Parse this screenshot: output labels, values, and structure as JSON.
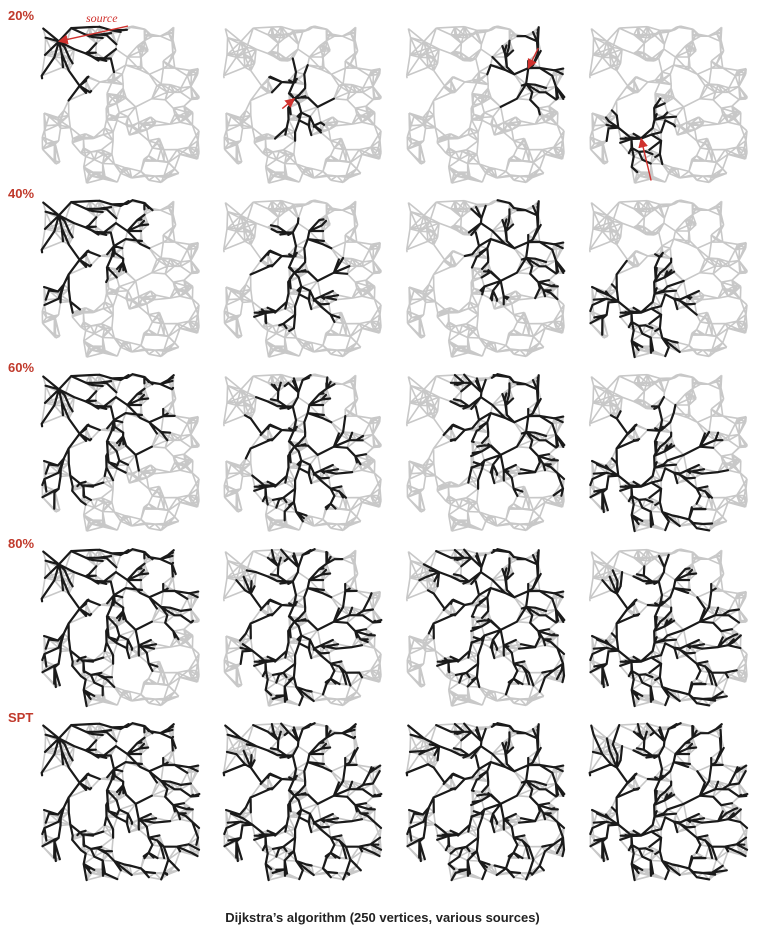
{
  "row_labels": [
    "20%",
    "40%",
    "60%",
    "80%",
    "SPT"
  ],
  "source_label": "source",
  "caption": "Dijkstra’s algorithm (250 vertices, various sources)",
  "colors": {
    "label": "#c0392b",
    "arrow": "#d0312d",
    "graph_edge": "#c8c8c8",
    "tree_edge": "#1a1a1a",
    "caption": "#222222"
  },
  "panel_grid": {
    "rows": 5,
    "columns": 4,
    "progress_fraction_by_row": [
      0.2,
      0.4,
      0.6,
      0.8,
      1.0
    ],
    "graph_vertices": 250,
    "source_regions_by_column": [
      "upper-left",
      "center",
      "upper-right",
      "lower-left"
    ]
  }
}
